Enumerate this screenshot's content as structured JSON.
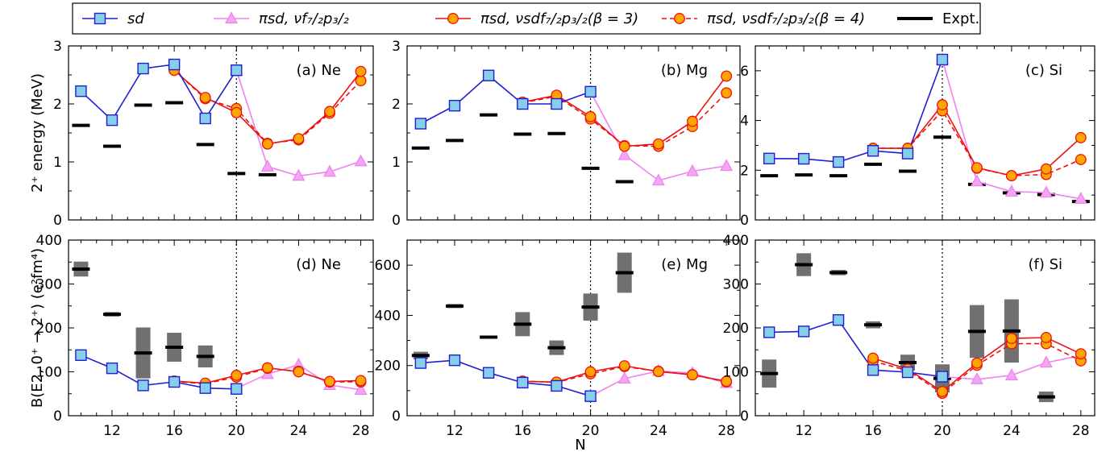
{
  "legend": [
    {
      "key": "sd",
      "label": "sd",
      "color": "#1f1fd0",
      "marker": "square",
      "dash": false
    },
    {
      "key": "pisd_vfp",
      "label": "πsd, νf₇/₂p₃/₂",
      "color": "#ee82ee",
      "marker": "triangle",
      "dash": false
    },
    {
      "key": "b3",
      "label": "πsd, νsdf₇/₂p₃/₂(β = 3)",
      "color": "#ee1111",
      "marker": "circle",
      "dash": false
    },
    {
      "key": "b4",
      "label": "πsd, νsdf₇/₂p₃/₂(β = 4)",
      "color": "#ee1111",
      "marker": "circle",
      "dash": true
    },
    {
      "key": "expt",
      "label": "Expt.",
      "color": "#000000",
      "marker": "bar",
      "dash": false
    }
  ],
  "axes": {
    "y_top_label": "2⁺ energy (MeV)",
    "y_bottom_label": "B(E2, 0⁺ → 2⁺) (e²fm⁴)",
    "x_label": "N",
    "x_ticks": [
      "12",
      "16",
      "20",
      "24",
      "28"
    ]
  },
  "chart_data": [
    {
      "type": "line",
      "panel": "a",
      "label": "(a) Ne",
      "ylim": [
        0,
        3
      ],
      "yticks": [
        0,
        1,
        2,
        3
      ],
      "series": {
        "sd": {
          "x": [
            10,
            12,
            14,
            16,
            18,
            20
          ],
          "y": [
            2.22,
            1.72,
            2.61,
            2.68,
            1.75,
            2.58
          ]
        },
        "pisd_vfp": {
          "x": [
            20,
            22,
            24,
            26,
            28
          ],
          "y": [
            2.58,
            0.92,
            0.76,
            0.83,
            1.01
          ]
        },
        "b3": {
          "x": [
            16,
            18,
            20,
            22,
            24,
            26,
            28
          ],
          "y": [
            2.58,
            2.11,
            1.85,
            1.31,
            1.4,
            1.87,
            2.56
          ]
        },
        "b4": {
          "x": [
            16,
            18,
            20,
            22,
            24,
            26,
            28
          ],
          "y": [
            2.58,
            2.09,
            1.92,
            1.32,
            1.38,
            1.84,
            2.4
          ]
        }
      },
      "expt": {
        "x": [
          10,
          12,
          14,
          16,
          18,
          20,
          22
        ],
        "y": [
          1.63,
          1.27,
          1.98,
          2.02,
          1.3,
          0.8,
          0.78
        ]
      }
    },
    {
      "type": "line",
      "panel": "b",
      "label": "(b) Mg",
      "ylim": [
        0,
        3
      ],
      "yticks": [
        0,
        1,
        2,
        3
      ],
      "series": {
        "sd": {
          "x": [
            10,
            12,
            14,
            16,
            18,
            20
          ],
          "y": [
            1.66,
            1.97,
            2.49,
            2.0,
            2.0,
            2.21
          ]
        },
        "pisd_vfp": {
          "x": [
            20,
            22,
            24,
            26,
            28
          ],
          "y": [
            2.21,
            1.12,
            0.68,
            0.84,
            0.93
          ]
        },
        "b3": {
          "x": [
            16,
            18,
            20,
            22,
            24,
            26,
            28
          ],
          "y": [
            2.03,
            2.15,
            1.78,
            1.27,
            1.31,
            1.7,
            2.48
          ]
        },
        "b4": {
          "x": [
            16,
            18,
            20,
            22,
            24,
            26,
            28
          ],
          "y": [
            2.02,
            2.13,
            1.74,
            1.28,
            1.27,
            1.61,
            2.19
          ]
        }
      },
      "expt": {
        "x": [
          10,
          12,
          14,
          16,
          18,
          20,
          22
        ],
        "y": [
          1.24,
          1.37,
          1.81,
          1.48,
          1.49,
          0.89,
          0.66
        ]
      }
    },
    {
      "type": "line",
      "panel": "c",
      "label": "(c) Si",
      "ylim": [
        0,
        7
      ],
      "yticks": [
        0,
        2,
        4,
        6
      ],
      "series": {
        "sd": {
          "x": [
            10,
            12,
            14,
            16,
            18,
            20
          ],
          "y": [
            2.47,
            2.46,
            2.33,
            2.78,
            2.67,
            6.45
          ]
        },
        "pisd_vfp": {
          "x": [
            20,
            22,
            24,
            26,
            28
          ],
          "y": [
            6.45,
            1.55,
            1.14,
            1.1,
            0.85
          ]
        },
        "b3": {
          "x": [
            16,
            18,
            20,
            22,
            24,
            26,
            28
          ],
          "y": [
            2.88,
            2.88,
            4.63,
            2.1,
            1.78,
            2.05,
            3.31
          ]
        },
        "b4": {
          "x": [
            16,
            18,
            20,
            22,
            24,
            26,
            28
          ],
          "y": [
            2.88,
            2.88,
            4.39,
            2.08,
            1.78,
            1.83,
            2.43
          ]
        }
      },
      "expt": {
        "x": [
          10,
          12,
          14,
          16,
          18,
          20,
          22,
          24,
          26,
          28
        ],
        "y": [
          1.78,
          1.81,
          1.78,
          2.24,
          1.96,
          3.33,
          1.43,
          1.09,
          1.02,
          0.74
        ]
      }
    },
    {
      "type": "line",
      "panel": "d",
      "label": "(d) Ne",
      "ylim": [
        0,
        400
      ],
      "yticks": [
        0,
        100,
        200,
        300,
        400
      ],
      "series": {
        "sd": {
          "x": [
            10,
            12,
            14,
            16,
            18,
            20
          ],
          "y": [
            138,
            108,
            69,
            77,
            63,
            61
          ]
        },
        "pisd_vfp": {
          "x": [
            20,
            22,
            24,
            26,
            28
          ],
          "y": [
            62,
            95,
            116,
            70,
            59
          ]
        },
        "b3": {
          "x": [
            16,
            18,
            20,
            22,
            24,
            26,
            28
          ],
          "y": [
            79,
            74,
            92,
            109,
            100,
            78,
            80
          ]
        },
        "b4": {
          "x": [
            16,
            18,
            20,
            22,
            24,
            26,
            28
          ],
          "y": [
            78,
            73,
            88,
            108,
            101,
            77,
            77
          ]
        }
      },
      "expt": {
        "x": [
          10,
          12,
          14,
          16,
          18
        ],
        "y": [
          334,
          231,
          143,
          156,
          135
        ],
        "err": [
          17,
          5,
          58,
          33,
          25
        ]
      }
    },
    {
      "type": "line",
      "panel": "e",
      "label": "(e) Mg",
      "ylim": [
        0,
        700
      ],
      "yticks": [
        0,
        200,
        400,
        600
      ],
      "series": {
        "sd": {
          "x": [
            10,
            12,
            14,
            16,
            18,
            20
          ],
          "y": [
            210,
            221,
            171,
            132,
            119,
            78
          ]
        },
        "pisd_vfp": {
          "x": [
            20,
            22,
            24,
            26,
            28
          ],
          "y": [
            78,
            148,
            178,
            170,
            130
          ]
        },
        "b3": {
          "x": [
            16,
            18,
            20,
            22,
            24,
            26,
            28
          ],
          "y": [
            137,
            134,
            175,
            199,
            176,
            163,
            137
          ]
        },
        "b4": {
          "x": [
            16,
            18,
            20,
            22,
            24,
            26,
            28
          ],
          "y": [
            138,
            133,
            167,
            196,
            177,
            163,
            135
          ]
        }
      },
      "expt": {
        "x": [
          10,
          12,
          14,
          16,
          18,
          20,
          22
        ],
        "y": [
          240,
          437,
          313,
          365,
          271,
          433,
          570
        ],
        "err": [
          15,
          8,
          5,
          48,
          29,
          54,
          80
        ]
      }
    },
    {
      "type": "line",
      "panel": "f",
      "label": "(f) Si",
      "ylim": [
        0,
        400
      ],
      "yticks": [
        0,
        100,
        200,
        300,
        400
      ],
      "series": {
        "sd": {
          "x": [
            10,
            12,
            14,
            16,
            18,
            20
          ],
          "y": [
            190,
            192,
            218,
            104,
            99,
            89
          ]
        },
        "pisd_vfp": {
          "x": [
            20,
            22,
            24,
            26,
            28
          ],
          "y": [
            89,
            83,
            92,
            121,
            137
          ]
        },
        "b3": {
          "x": [
            16,
            18,
            20,
            22,
            24,
            26,
            28
          ],
          "y": [
            131,
            106,
            55,
            120,
            176,
            178,
            141
          ]
        },
        "b4": {
          "x": [
            16,
            18,
            20,
            22,
            24,
            26,
            28
          ],
          "y": [
            124,
            103,
            51,
            115,
            164,
            164,
            125
          ]
        }
      },
      "expt": {
        "x": [
          10,
          12,
          14,
          16,
          18,
          20,
          22,
          24,
          26
        ],
        "y": [
          96,
          344,
          326,
          207,
          121,
          85,
          192,
          193,
          43
        ],
        "err": [
          32,
          26,
          6,
          8,
          18,
          32,
          60,
          72,
          12
        ]
      }
    }
  ]
}
